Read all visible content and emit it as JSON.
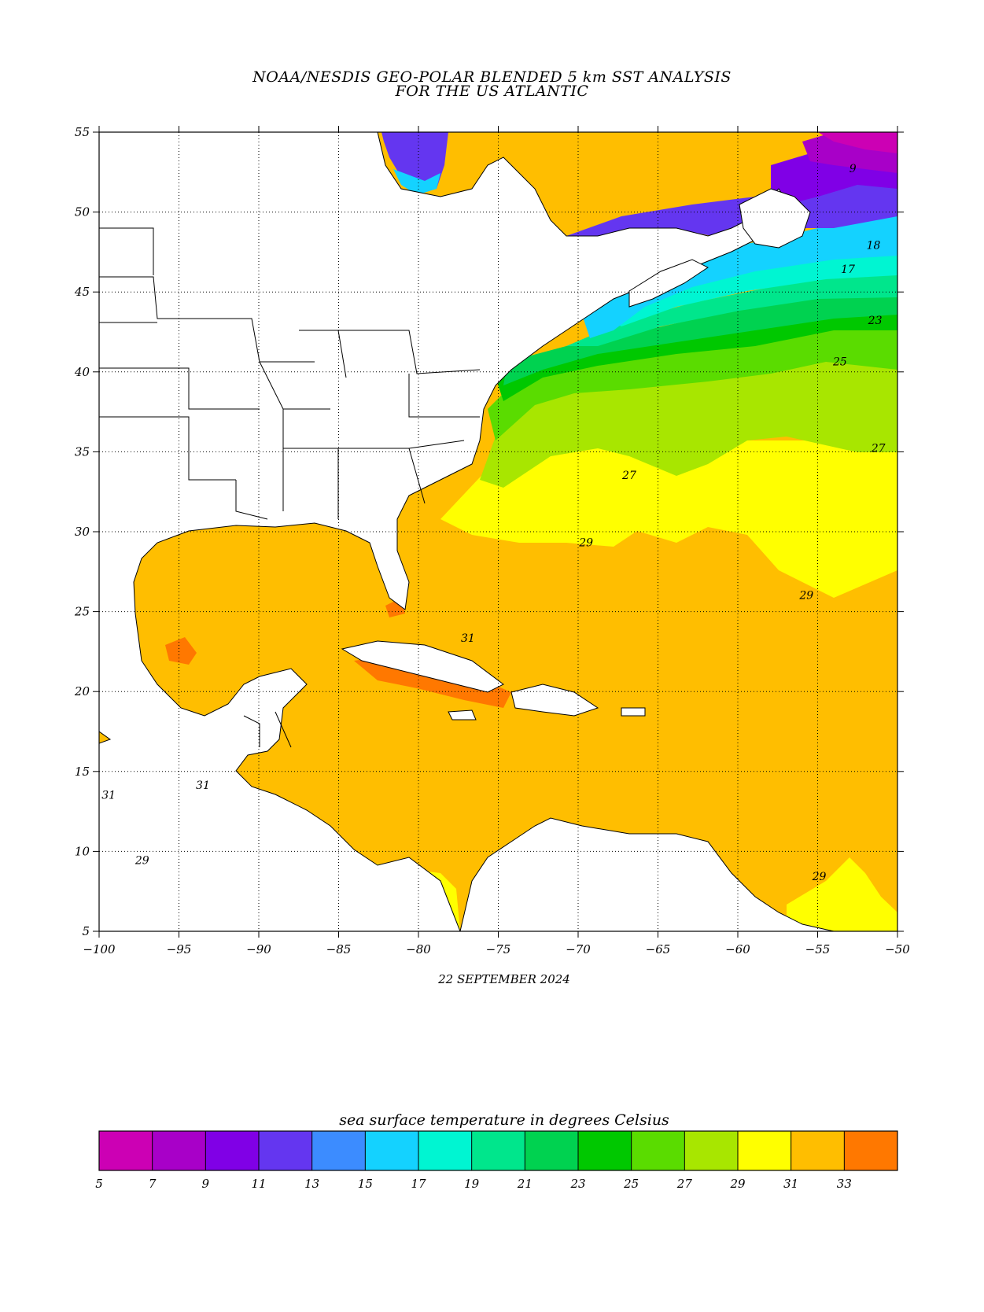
{
  "title": {
    "line1": "NOAA/NESDIS GEO-POLAR BLENDED 5 km SST ANALYSIS",
    "line2": "FOR THE US ATLANTIC"
  },
  "date": "22 SEPTEMBER 2024",
  "map": {
    "lon_range": [
      -100,
      -50
    ],
    "lat_range": [
      5,
      55
    ],
    "lon_ticks": [
      -100,
      -95,
      -90,
      -85,
      -80,
      -75,
      -70,
      -65,
      -60,
      -55,
      -50
    ],
    "lat_ticks": [
      55,
      50,
      45,
      40,
      35,
      30,
      25,
      20,
      15,
      10,
      5
    ],
    "grid": true,
    "contour_labels": [
      {
        "text": "29",
        "lon": -69.5,
        "lat": 29.1
      },
      {
        "text": "29",
        "lon": -55.7,
        "lat": 25.8
      },
      {
        "text": "29",
        "lon": -54.9,
        "lat": 8.2
      },
      {
        "text": "29",
        "lon": -97.3,
        "lat": 9.2
      },
      {
        "text": "27",
        "lon": -66.8,
        "lat": 33.3
      },
      {
        "text": "27",
        "lon": -51.2,
        "lat": 35.0
      },
      {
        "text": "25",
        "lon": -53.6,
        "lat": 40.4
      },
      {
        "text": "17",
        "lon": -53.1,
        "lat": 46.2
      },
      {
        "text": "18",
        "lon": -51.5,
        "lat": 47.7
      },
      {
        "text": "9",
        "lon": -52.8,
        "lat": 52.5
      },
      {
        "text": "31",
        "lon": -99.4,
        "lat": 13.3
      },
      {
        "text": "31",
        "lon": -93.5,
        "lat": 13.9
      },
      {
        "text": "31",
        "lon": -76.9,
        "lat": 23.1
      },
      {
        "text": "23",
        "lon": -51.4,
        "lat": 43.0
      }
    ]
  },
  "legend": {
    "title": "sea surface temperature in degrees Celsius",
    "ticks": [
      "5",
      "7",
      "9",
      "11",
      "13",
      "15",
      "17",
      "19",
      "21",
      "23",
      "25",
      "27",
      "29",
      "31",
      "33"
    ],
    "colors": [
      "#cc00b4",
      "#a800c8",
      "#8000e6",
      "#6436f0",
      "#3c8cff",
      "#14d2ff",
      "#00f5d2",
      "#00e68c",
      "#00d250",
      "#00c800",
      "#5adc00",
      "#a8e600",
      "#ffff00",
      "#ffbe00",
      "#ff7800"
    ]
  }
}
